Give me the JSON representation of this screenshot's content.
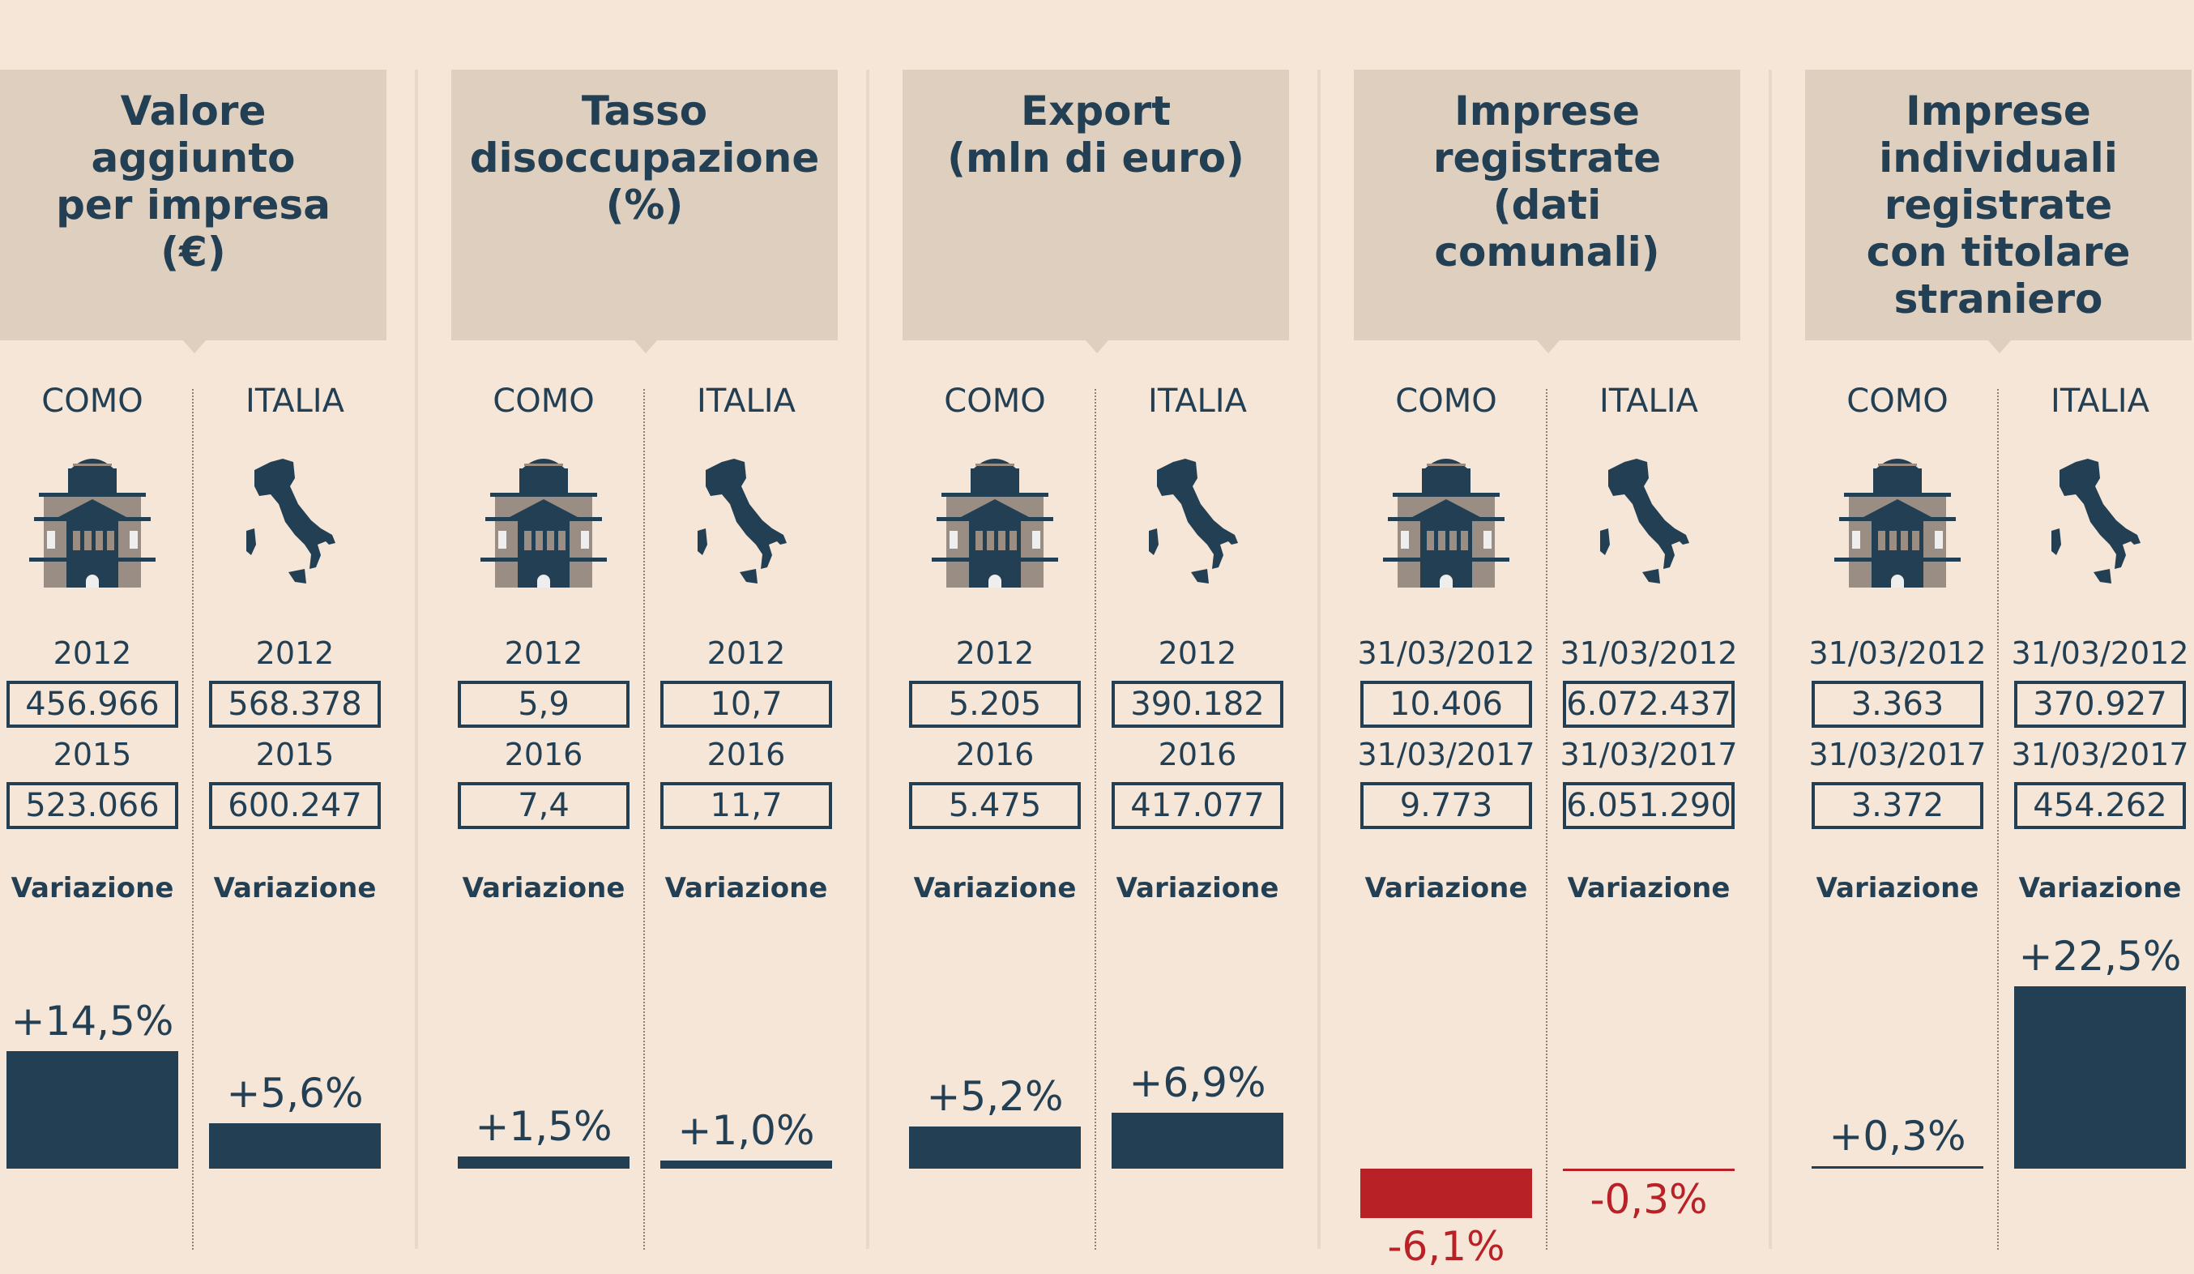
{
  "colors": {
    "dark": "#233f54",
    "red": "#b82227",
    "header": "#dfcfbf",
    "bg": "#f5e6d7"
  },
  "panels": [
    {
      "title": "Valore\naggiunto\nper impresa\n(€)",
      "cols": [
        {
          "name": "COMO",
          "icon": "building-icon",
          "d1": "2012",
          "v1": "456.966",
          "d2": "2015",
          "v2": "523.066",
          "var": "Variazione",
          "pct": "+14,5%",
          "value": 14.5
        },
        {
          "name": "ITALIA",
          "icon": "italy-map-icon",
          "d1": "2012",
          "v1": "568.378",
          "d2": "2015",
          "v2": "600.247",
          "var": "Variazione",
          "pct": "+5,6%",
          "value": 5.6
        }
      ]
    },
    {
      "title": "Tasso\ndisoccupazione\n(%)",
      "cols": [
        {
          "name": "COMO",
          "icon": "building-icon",
          "d1": "2012",
          "v1": "5,9",
          "d2": "2016",
          "v2": "7,4",
          "var": "Variazione",
          "pct": "+1,5%",
          "value": 1.5
        },
        {
          "name": "ITALIA",
          "icon": "italy-map-icon",
          "d1": "2012",
          "v1": "10,7",
          "d2": "2016",
          "v2": "11,7",
          "var": "Variazione",
          "pct": "+1,0%",
          "value": 1.0
        }
      ]
    },
    {
      "title": "Export\n(mln di euro)",
      "cols": [
        {
          "name": "COMO",
          "icon": "building-icon",
          "d1": "2012",
          "v1": "5.205",
          "d2": "2016",
          "v2": "5.475",
          "var": "Variazione",
          "pct": "+5,2%",
          "value": 5.2
        },
        {
          "name": "ITALIA",
          "icon": "italy-map-icon",
          "d1": "2012",
          "v1": "390.182",
          "d2": "2016",
          "v2": "417.077",
          "var": "Variazione",
          "pct": "+6,9%",
          "value": 6.9
        }
      ]
    },
    {
      "title": "Imprese\nregistrate\n(dati\ncomunali)",
      "cols": [
        {
          "name": "COMO",
          "icon": "building-icon",
          "d1": "31/03/2012",
          "v1": "10.406",
          "d2": "31/03/2017",
          "v2": "9.773",
          "var": "Variazione",
          "pct": "-6,1%",
          "value": -6.1
        },
        {
          "name": "ITALIA",
          "icon": "italy-map-icon",
          "d1": "31/03/2012",
          "v1": "6.072.437",
          "d2": "31/03/2017",
          "v2": "6.051.290",
          "var": "Variazione",
          "pct": "-0,3%",
          "value": -0.3
        }
      ]
    },
    {
      "title": "Imprese\nindividuali\nregistrate\ncon titolare\nstraniero",
      "cols": [
        {
          "name": "COMO",
          "icon": "building-icon",
          "d1": "31/03/2012",
          "v1": "3.363",
          "d2": "31/03/2017",
          "v2": "3.372",
          "var": "Variazione",
          "pct": "+0,3%",
          "value": 0.3
        },
        {
          "name": "ITALIA",
          "icon": "italy-map-icon",
          "d1": "31/03/2012",
          "v1": "370.927",
          "d2": "31/03/2017",
          "v2": "454.262",
          "var": "Variazione",
          "pct": "+22,5%",
          "value": 22.5
        }
      ]
    }
  ]
}
